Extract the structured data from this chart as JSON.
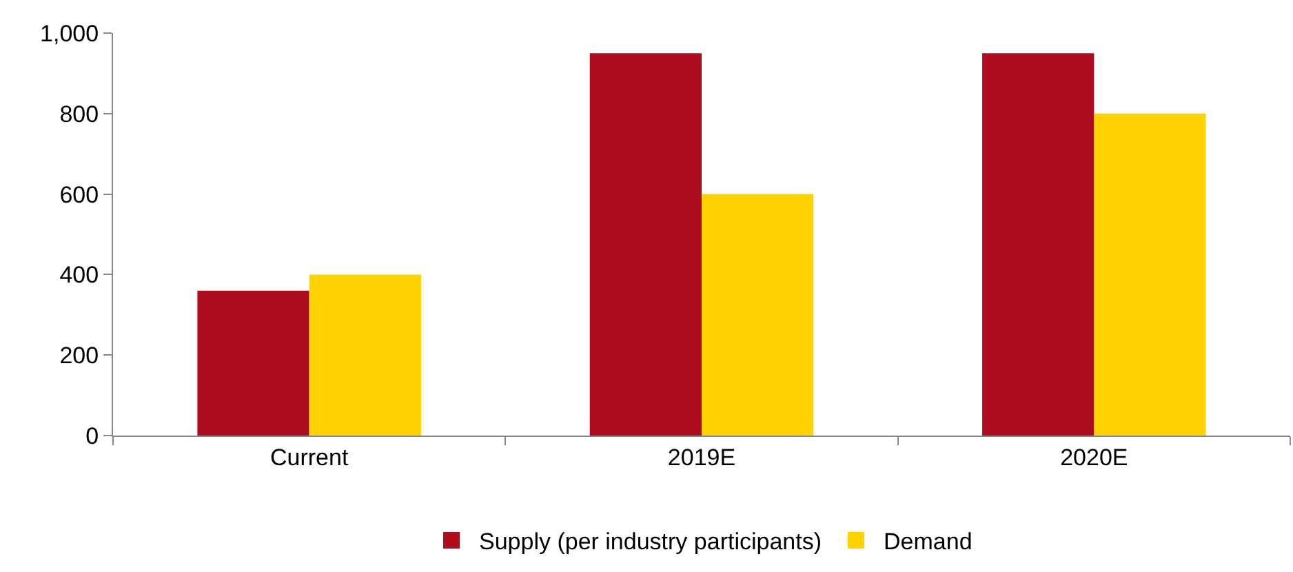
{
  "chart_data": {
    "type": "bar",
    "categories": [
      "Current",
      "2019E",
      "2020E"
    ],
    "series": [
      {
        "name": "Supply (per industry participants)",
        "color": "#ae0c1f",
        "values": [
          360,
          950,
          950
        ]
      },
      {
        "name": "Demand",
        "color": "#ffd200",
        "values": [
          400,
          600,
          800
        ]
      }
    ],
    "ylim": [
      0,
      1000
    ],
    "yticks": [
      0,
      200,
      400,
      600,
      800,
      {
        "value": 1000,
        "label": "1,000"
      }
    ],
    "grid": false,
    "legend": "bottom"
  }
}
